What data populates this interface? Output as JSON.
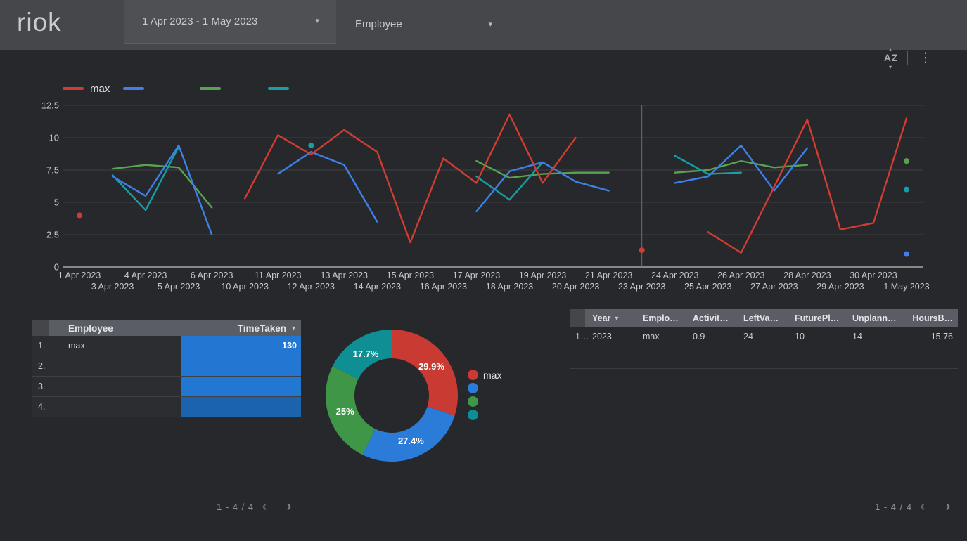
{
  "header": {
    "logo": "riok",
    "date_range": "1 Apr 2023 - 1 May 2023",
    "filter_label": "Employee"
  },
  "icons": {
    "chevron_down": "▾",
    "caret_up": "▴",
    "caret_down": "▾",
    "sort_az": "AZ",
    "kebab": "⋮",
    "chevron_left": "‹",
    "chevron_right": "›"
  },
  "chart_data": [
    {
      "type": "line",
      "title": "",
      "xlabel": "",
      "ylabel": "",
      "ylim": [
        0,
        12.5
      ],
      "grid": true,
      "legend_position": "top-left",
      "reference_line_category": "23 Apr 2023",
      "yticks": [
        {
          "value": 0,
          "label": "0"
        },
        {
          "value": 2.5,
          "label": "2.5"
        },
        {
          "value": 5,
          "label": "5"
        },
        {
          "value": 7.5,
          "label": "7.5"
        },
        {
          "value": 10,
          "label": "10"
        },
        {
          "value": 12.5,
          "label": "12.5"
        }
      ],
      "categories": [
        "1 Apr 2023",
        "3 Apr 2023",
        "4 Apr 2023",
        "5 Apr 2023",
        "6 Apr 2023",
        "10 Apr 2023",
        "11 Apr 2023",
        "12 Apr 2023",
        "13 Apr 2023",
        "14 Apr 2023",
        "15 Apr 2023",
        "16 Apr 2023",
        "17 Apr 2023",
        "18 Apr 2023",
        "19 Apr 2023",
        "20 Apr 2023",
        "21 Apr 2023",
        "23 Apr 2023",
        "24 Apr 2023",
        "25 Apr 2023",
        "26 Apr 2023",
        "27 Apr 2023",
        "28 Apr 2023",
        "29 Apr 2023",
        "30 Apr 2023",
        "1 May 2023"
      ],
      "series": [
        {
          "name": "max",
          "color": "#d23c32",
          "values": [
            4.0,
            null,
            null,
            null,
            null,
            5.3,
            10.2,
            8.7,
            10.6,
            8.9,
            1.9,
            8.4,
            6.5,
            11.8,
            6.5,
            10.0,
            null,
            1.3,
            null,
            2.7,
            1.1,
            6.2,
            11.4,
            2.9,
            3.4,
            11.5
          ]
        },
        {
          "name": "",
          "color": "#3f80e8",
          "values": [
            null,
            7.0,
            5.5,
            9.4,
            2.5,
            null,
            7.2,
            8.9,
            7.9,
            3.5,
            null,
            null,
            4.3,
            7.4,
            8.1,
            6.6,
            5.9,
            null,
            6.5,
            7.0,
            9.4,
            5.9,
            9.2,
            null,
            null,
            1.0
          ]
        },
        {
          "name": "",
          "color": "#5aa253",
          "values": [
            null,
            7.6,
            7.9,
            7.7,
            4.6,
            null,
            null,
            null,
            null,
            null,
            null,
            null,
            8.2,
            6.9,
            7.2,
            7.3,
            7.3,
            null,
            7.3,
            7.5,
            8.2,
            7.7,
            7.9,
            null,
            null,
            8.2
          ]
        },
        {
          "name": "",
          "color": "#16a0a6",
          "values": [
            null,
            7.1,
            4.4,
            9.3,
            null,
            null,
            null,
            9.4,
            null,
            null,
            null,
            null,
            7.0,
            5.2,
            8.1,
            null,
            null,
            null,
            8.6,
            7.2,
            7.3,
            null,
            null,
            null,
            null,
            6.0
          ]
        }
      ]
    },
    {
      "type": "pie",
      "donut": true,
      "legend_position": "right",
      "slices": [
        {
          "label": "max",
          "value": 29.9,
          "pct_label": "29.9%",
          "color": "#c93a32"
        },
        {
          "label": "",
          "value": 27.4,
          "pct_label": "27.4%",
          "color": "#2b7cd9"
        },
        {
          "label": "",
          "value": 25,
          "pct_label": "25%",
          "color": "#3f9647"
        },
        {
          "label": "",
          "value": 17.7,
          "pct_label": "17.7%",
          "color": "#0f8f94"
        }
      ]
    }
  ],
  "tables": {
    "left": {
      "col_employee": "Employee",
      "col_timetaken": "TimeTaken",
      "bar_color": "#2277d3",
      "bar_color_last": "#1c63ae",
      "rows": [
        {
          "num": "1.",
          "employee": "max",
          "timetaken": "130"
        },
        {
          "num": "2.",
          "employee": "",
          "timetaken": ""
        },
        {
          "num": "3.",
          "employee": "",
          "timetaken": ""
        },
        {
          "num": "4.",
          "employee": "",
          "timetaken": ""
        }
      ]
    },
    "right": {
      "columns": [
        "Year",
        "Emplo…",
        "Activit…",
        "LeftVa…",
        "FuturePl…",
        "Unplann…",
        "HoursB…"
      ],
      "rows": [
        [
          "1…",
          "2023",
          "max",
          "0.9",
          "24",
          "10",
          "14",
          "15.76"
        ]
      ]
    }
  },
  "pagination": {
    "left": {
      "label": "1 - 4 / 4"
    },
    "right": {
      "label": "1 - 4 / 4"
    }
  }
}
